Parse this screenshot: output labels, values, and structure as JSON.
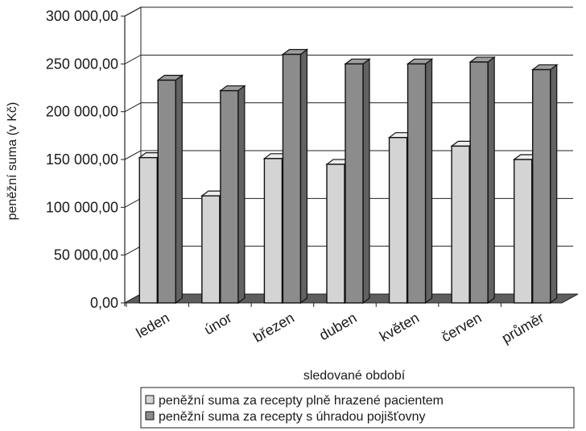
{
  "chart_data": {
    "type": "bar",
    "categories": [
      "leden",
      "únor",
      "březen",
      "duben",
      "květen",
      "červen",
      "průměr"
    ],
    "series": [
      {
        "name": "peněžní suma za recepty plně hrazené pacientem",
        "color": "#d4d4d4",
        "values": [
          152000,
          112000,
          151000,
          145000,
          173000,
          164000,
          150000
        ]
      },
      {
        "name": "peněžní suma za recepty s úhradou pojišťovny",
        "color": "#8c8c8c",
        "values": [
          233000,
          222000,
          260000,
          250000,
          250000,
          252000,
          244000
        ]
      }
    ],
    "ylim": [
      0,
      300000
    ],
    "yticks": [
      {
        "value": 0,
        "label": "0,00"
      },
      {
        "value": 50000,
        "label": "50 000,00"
      },
      {
        "value": 100000,
        "label": "100 000,00"
      },
      {
        "value": 150000,
        "label": "150 000,00"
      },
      {
        "value": 200000,
        "label": "200 000,00"
      },
      {
        "value": 250000,
        "label": "250 000,00"
      },
      {
        "value": 300000,
        "label": "300 000,00"
      }
    ],
    "xlabel": "sledované období",
    "ylabel": "peněžní suma (v Kč)",
    "grid": true,
    "style": "3d",
    "legend_position": "bottom"
  }
}
